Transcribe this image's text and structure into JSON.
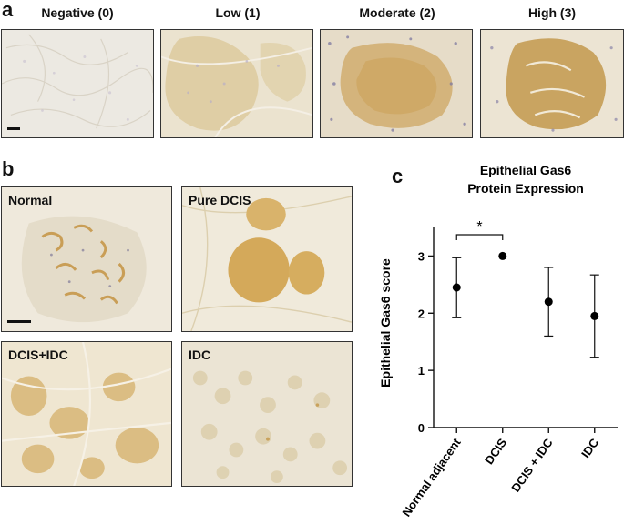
{
  "panels": {
    "a": {
      "letter": "a",
      "images": [
        {
          "title": "Negative (0)",
          "tone": "negative"
        },
        {
          "title": "Low (1)",
          "tone": "low"
        },
        {
          "title": "Moderate (2)",
          "tone": "moderate"
        },
        {
          "title": "High (3)",
          "tone": "high"
        }
      ]
    },
    "b": {
      "letter": "b",
      "images": [
        {
          "label": "Normal"
        },
        {
          "label": "Pure DCIS"
        },
        {
          "label": "DCIS+IDC"
        },
        {
          "label": "IDC"
        }
      ]
    },
    "c": {
      "letter": "c"
    }
  },
  "chart_data": {
    "type": "scatter",
    "title": "Epithelial Gas6\nProtein Expression",
    "ylabel": "Epithelial Gas6 score",
    "xlabel": "",
    "categories": [
      "Normal adjacent",
      "DCIS",
      "DCIS + IDC",
      "IDC"
    ],
    "values": [
      2.45,
      3.0,
      2.2,
      1.95
    ],
    "error_low": [
      1.92,
      3.0,
      1.6,
      1.23
    ],
    "error_high": [
      2.97,
      3.0,
      2.8,
      2.67
    ],
    "ylim": [
      0,
      3.5
    ],
    "yticks": [
      0,
      1,
      2,
      3
    ],
    "significance": {
      "from": 0,
      "to": 1,
      "label": "*"
    },
    "grid": false,
    "marker_color": "#000000"
  }
}
